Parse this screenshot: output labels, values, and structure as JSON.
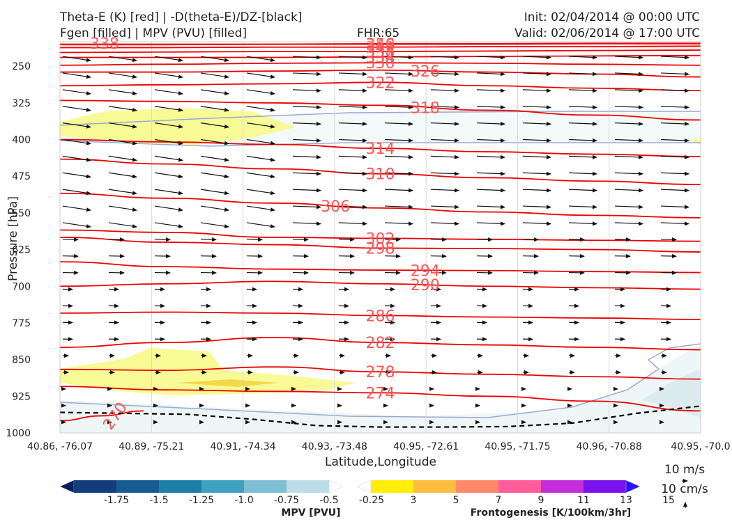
{
  "header": {
    "title_line1": "Theta-E (K) [red] | -D(theta-E)/DZ-[black]",
    "title_line2": "Fgen [filled] | MPV (PVU) [filled]",
    "fhr": "FHR:65",
    "init": "Init: 02/04/2014 @ 00:00 UTC",
    "valid": "Valid: 02/06/2014 @ 17:00 UTC"
  },
  "chart_data": {
    "type": "cross-section",
    "xlabel": "Latitude,Longitude",
    "ylabel": "Pressure [hPa]",
    "x_ticks": [
      "40.86, -76.07",
      "40.89, -75.21",
      "40.91, -74.34",
      "40.93, -73.48",
      "40.95, -72.61",
      "40.95, -71.75",
      "40.96, -70.88",
      "40.95, -70.0"
    ],
    "y_ticks": [
      250,
      325,
      400,
      475,
      550,
      625,
      700,
      775,
      850,
      925,
      1000
    ],
    "ylim": [
      1000,
      200
    ],
    "theta_e_contours": [
      {
        "value": 270,
        "label": "270",
        "y": [
          975,
          965,
          955
        ]
      },
      {
        "value": 274,
        "label": "274",
        "y": [
          905,
          912,
          915,
          918,
          925,
          935,
          955
        ]
      },
      {
        "value": 278,
        "label": "278",
        "y": [
          870,
          872,
          865,
          875,
          880,
          885,
          890
        ]
      },
      {
        "value": 282,
        "label": "282",
        "y": [
          825,
          815,
          805,
          815,
          820,
          825,
          830
        ]
      },
      {
        "value": 286,
        "label": "286",
        "y": [
          755,
          753,
          755,
          760,
          763,
          765,
          768
        ]
      },
      {
        "value": 290,
        "label": "290",
        "y": [
          700,
          695,
          690,
          695,
          700,
          703,
          706
        ]
      },
      {
        "value": 294,
        "label": "294",
        "y": [
          650,
          660,
          665,
          667,
          668,
          670,
          672
        ]
      },
      {
        "value": 298,
        "label": "298",
        "y": [
          600,
          610,
          615,
          622,
          623,
          625,
          630
        ]
      },
      {
        "value": 302,
        "label": "302",
        "y": [
          585,
          590,
          600,
          602,
          604,
          606,
          608
        ]
      },
      {
        "value": 306,
        "label": "306",
        "y": [
          510,
          520,
          530,
          540,
          548,
          555,
          560
        ]
      },
      {
        "value": 310,
        "label": "310",
        "y": [
          440,
          450,
          460,
          470,
          478,
          485,
          492
        ]
      },
      {
        "value": 314,
        "label": "314",
        "y": [
          400,
          405,
          410,
          418,
          425,
          430,
          435
        ]
      },
      {
        "value": 318,
        "label": "318",
        "y": [
          320,
          322,
          325,
          330,
          340,
          350,
          360
        ]
      },
      {
        "value": 322,
        "label": "322",
        "y": [
          290,
          288,
          286,
          283,
          290,
          295,
          300
        ]
      },
      {
        "value": 326,
        "label": "326",
        "y": [
          262,
          262,
          260,
          258,
          262,
          266,
          272
        ]
      },
      {
        "value": 330,
        "label": "330",
        "y": [
          248,
          246,
          244,
          243,
          244,
          246,
          248
        ]
      },
      {
        "value": 334,
        "label": "334",
        "y": [
          232,
          232,
          232,
          231,
          230,
          229,
          228
        ]
      },
      {
        "value": 338,
        "label": "338",
        "y": [
          222,
          221,
          220,
          220,
          219,
          218,
          217
        ]
      },
      {
        "value": 342,
        "label": "342",
        "y": [
          212,
          212,
          211,
          211,
          210,
          210,
          209
        ]
      },
      {
        "value": 346,
        "label": "346",
        "y": [
          206,
          206,
          205,
          205,
          205,
          204,
          204
        ]
      },
      {
        "value": 350,
        "label": "350",
        "y": [
          205,
          205,
          205,
          204,
          204,
          203,
          203
        ]
      }
    ],
    "boundary_layer_y": [
      958,
      960,
      962,
      972,
      985,
      988,
      988,
      987,
      980,
      960,
      945
    ],
    "mpv_colorbar": {
      "title": "MPV [PVU]",
      "ticks": [
        "-1.75",
        "-1.5",
        "-1.25",
        "-1.0",
        "-0.75",
        "-0.5",
        "-0.25"
      ],
      "colors": [
        "#0b1f5e",
        "#133d7a",
        "#165c93",
        "#1d7fa8",
        "#3fa0c0",
        "#7fbfd4",
        "#bcdde6",
        "#ffffff"
      ]
    },
    "fgen_colorbar": {
      "title": "Frontogenesis [K/100km/3hr]",
      "ticks": [
        "3",
        "5",
        "7",
        "9",
        "11",
        "13",
        "15"
      ],
      "colors": [
        "#ffffff",
        "#ffee0a",
        "#ffbd3f",
        "#ff8a6a",
        "#ff5c9a",
        "#c22ed8",
        "#7a12ee",
        "#2a12ff"
      ]
    },
    "vector_key": {
      "label1": "10 m/s",
      "label2": "10 cm/s"
    }
  },
  "colors": {
    "theta_e": "#ee0000",
    "theta_e_label": "#ff5555",
    "mpv_fill": "#dcebf0",
    "fgen_fill": "#f8fa96",
    "fgen_strong": "#f3d84a",
    "dtheta_dz": "#000000"
  }
}
